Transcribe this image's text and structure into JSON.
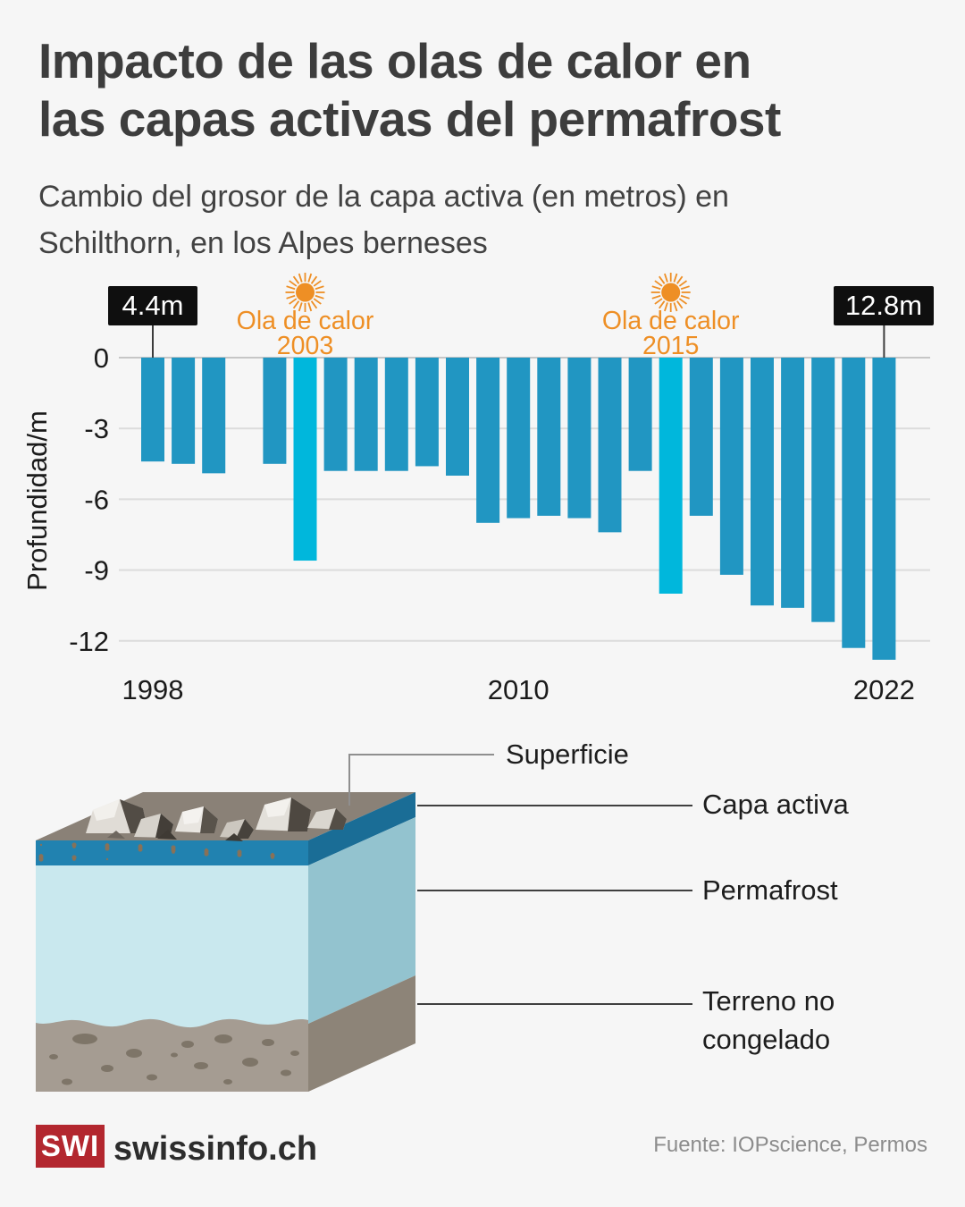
{
  "header": {
    "title_lines": [
      "Impacto de las olas de calor en",
      "las capas activas del permafrost"
    ],
    "subtitle_lines": [
      "Cambio del grosor de la capa activa (en metros) en",
      "Schilthorn, en los Alpes berneses"
    ]
  },
  "chart_data": {
    "type": "bar",
    "title": "Cambio del grosor de la capa activa (en metros) en Schilthorn, en los Alpes berneses",
    "xlabel": "",
    "ylabel": "Profundidad/m",
    "ylim": [
      0,
      -13
    ],
    "grid": true,
    "yticks": [
      0,
      -3,
      -6,
      -9,
      -12
    ],
    "xticks": [
      1998,
      2010,
      2022
    ],
    "x": [
      1998,
      1999,
      2000,
      2001,
      2002,
      2003,
      2004,
      2005,
      2006,
      2007,
      2008,
      2009,
      2010,
      2011,
      2012,
      2013,
      2014,
      2015,
      2016,
      2017,
      2018,
      2019,
      2020,
      2021,
      2022
    ],
    "values": [
      -4.4,
      -4.5,
      -4.9,
      null,
      -4.5,
      -8.6,
      -4.8,
      -4.8,
      -4.8,
      -4.6,
      -5.0,
      -7.0,
      -6.8,
      -6.7,
      -6.8,
      -7.4,
      -4.8,
      -10.0,
      -6.7,
      -9.2,
      -10.5,
      -10.6,
      -11.2,
      -12.3,
      -12.8
    ],
    "highlight_years": [
      2003,
      2015
    ],
    "colors": {
      "bar": "#2196c2",
      "highlight": "#00b7dc",
      "annotation_orange": "#ee8f25",
      "label_box": "#0f0f0f"
    },
    "annotations": {
      "value_labels": [
        {
          "text": "4.4m",
          "year": 1998
        },
        {
          "text": "12.8m",
          "year": 2022
        }
      ],
      "heatwaves": [
        {
          "line1": "Ola de calor",
          "line2": "2003",
          "year": 2003
        },
        {
          "line1": "Ola de calor",
          "line2": "2015",
          "year": 2015
        }
      ]
    }
  },
  "diagram": {
    "labels": {
      "surface": "Superficie",
      "active_layer": "Capa activa",
      "permafrost": "Permafrost",
      "unfrozen_line1": "Terreno no",
      "unfrozen_line2": "congelado"
    },
    "colors": {
      "top_face": "#8a8177",
      "active_front": "#2182b0",
      "active_side": "#1a6d96",
      "permafrost_front": "#c9e8ee",
      "permafrost_side": "#93c3cf",
      "unfrozen_front": "#a59c92",
      "unfrozen_side": "#8d8478"
    }
  },
  "footer": {
    "logo_text": "SWI",
    "brand": "swissinfo.ch",
    "source": "Fuente: IOPscience, Permos"
  }
}
